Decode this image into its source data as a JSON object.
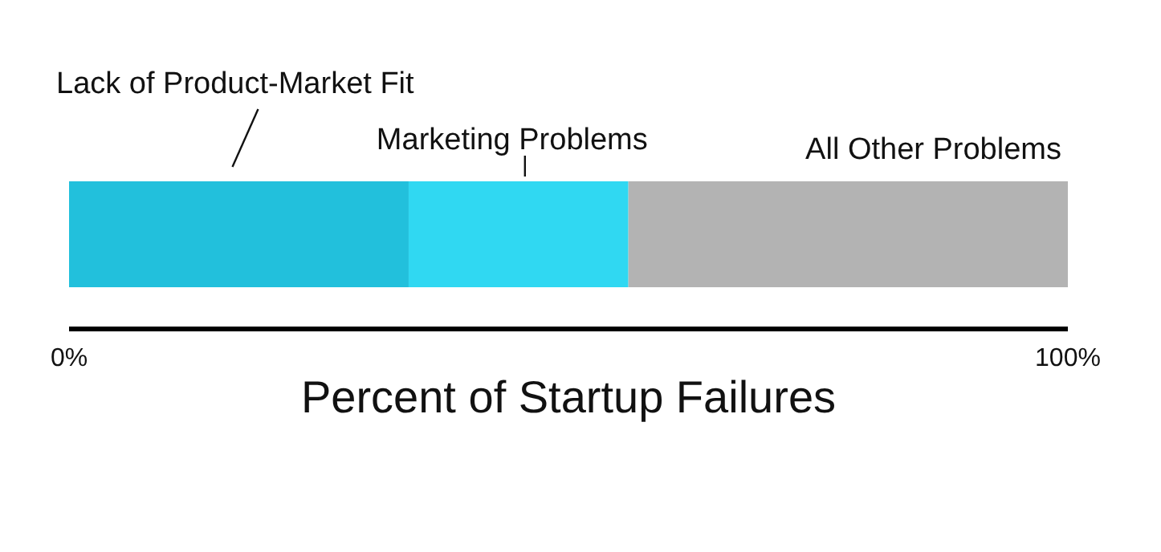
{
  "chart_data": {
    "type": "bar",
    "orientation": "horizontal",
    "stacked": true,
    "categories": [
      null
    ],
    "series": [
      {
        "name": "Lack of Product-Market Fit",
        "color": "#22c0dc",
        "values": [
          34
        ]
      },
      {
        "name": "Marketing Problems",
        "color": "#30d8f2",
        "values": [
          22
        ]
      },
      {
        "name": "All Other Problems",
        "color": "#b3b3b3",
        "values": [
          44
        ]
      }
    ],
    "xlim": [
      0,
      100
    ],
    "xticks": [
      {
        "value": 0,
        "label": "0%"
      },
      {
        "value": 100,
        "label": "100%"
      }
    ],
    "tick_labels": "x",
    "xlabel": "Percent of Startup Failures",
    "legend": false,
    "grid": false
  }
}
